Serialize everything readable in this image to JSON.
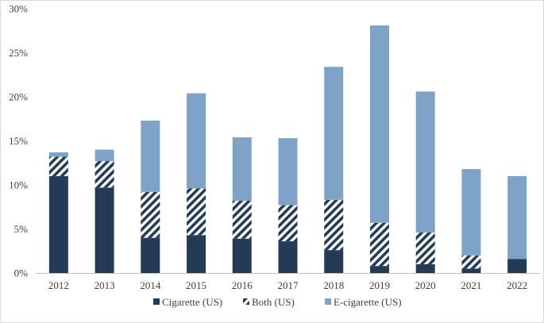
{
  "chart_data": {
    "type": "bar",
    "stacked": true,
    "categories": [
      "2012",
      "2013",
      "2014",
      "2015",
      "2016",
      "2017",
      "2018",
      "2019",
      "2020",
      "2021",
      "2022"
    ],
    "series": [
      {
        "name": "Cigarette (US)",
        "values": [
          11.0,
          9.7,
          4.0,
          4.3,
          3.9,
          3.6,
          2.6,
          0.8,
          1.0,
          0.5,
          1.6
        ],
        "color": "#243B55",
        "pattern": "solid"
      },
      {
        "name": "Both (US)",
        "values": [
          2.2,
          3.0,
          5.2,
          5.3,
          4.3,
          4.1,
          5.7,
          4.9,
          3.6,
          1.5,
          0.0
        ],
        "color": "#243B55",
        "pattern": "diagonal-stripes"
      },
      {
        "name": "E-cigarette (US)",
        "values": [
          0.5,
          1.3,
          8.1,
          10.8,
          7.2,
          7.6,
          15.1,
          22.4,
          16.0,
          9.8,
          9.4
        ],
        "color": "#7FA3C6",
        "pattern": "solid"
      }
    ],
    "yticks": [
      "0%",
      "5%",
      "10%",
      "15%",
      "20%",
      "25%",
      "30%"
    ],
    "ylim": [
      0,
      30
    ],
    "title": "",
    "xlabel": "",
    "ylabel": "",
    "legend_position": "bottom",
    "grid": false
  }
}
